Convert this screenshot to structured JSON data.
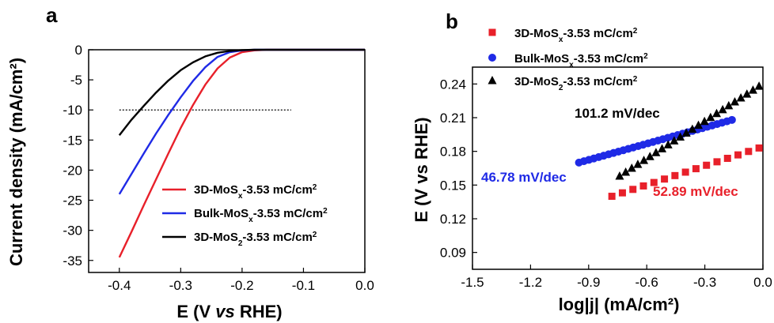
{
  "chart_data": [
    {
      "type": "line",
      "panel_label": "a",
      "xlabel_parts": [
        "E (V ",
        "vs",
        " RHE)"
      ],
      "ylabel": "Current density (mA/cm²)",
      "xlim": [
        -0.45,
        0.0
      ],
      "ylim": [
        -37,
        0
      ],
      "xticks": [
        -0.4,
        -0.3,
        -0.2,
        -0.1,
        0.0
      ],
      "xtick_labels": [
        "-0.4",
        "-0.3",
        "-0.2",
        "-0.1",
        "0.0"
      ],
      "yticks": [
        0,
        -5,
        -10,
        -15,
        -20,
        -25,
        -30,
        -35
      ],
      "ytick_labels": [
        "0",
        "-5",
        "-10",
        "-15",
        "-20",
        "-25",
        "-30",
        "-35"
      ],
      "reference_line": {
        "y": -10,
        "x": [
          -0.4,
          -0.12
        ],
        "style": "dotted"
      },
      "legend": {
        "position": "bottom-right"
      },
      "series": [
        {
          "name": "3D-MoSx-3.53 mC/cm2",
          "display": [
            "3D-MoS",
            "x",
            "-3.53 mC/cm",
            "2"
          ],
          "color": "#e8202a",
          "x": [
            -0.4,
            -0.38,
            -0.36,
            -0.34,
            -0.32,
            -0.3,
            -0.28,
            -0.26,
            -0.24,
            -0.22,
            -0.2,
            -0.18,
            -0.16,
            -0.14,
            -0.12,
            0.0
          ],
          "y": [
            -34.5,
            -30.2,
            -25.8,
            -21.5,
            -17.2,
            -13.0,
            -9.2,
            -5.8,
            -3.1,
            -1.3,
            -0.4,
            -0.1,
            0,
            0,
            0,
            0
          ]
        },
        {
          "name": "Bulk-MoSx-3.53 mC/cm2",
          "display": [
            "Bulk-MoS",
            "x",
            "-3.53 mC/cm",
            "2"
          ],
          "color": "#1f2ae6",
          "x": [
            -0.4,
            -0.38,
            -0.36,
            -0.34,
            -0.32,
            -0.3,
            -0.28,
            -0.26,
            -0.24,
            -0.22,
            -0.2,
            -0.18,
            -0.16,
            -0.14,
            -0.12,
            0.0
          ],
          "y": [
            -24.0,
            -20.6,
            -17.2,
            -13.9,
            -10.8,
            -7.9,
            -5.2,
            -2.9,
            -1.2,
            -0.4,
            -0.1,
            0,
            0,
            0,
            0,
            0
          ]
        },
        {
          "name": "3D-MoS2-3.53 mC/cm2",
          "display": [
            "3D-MoS",
            "2",
            "-3.53 mC/cm",
            "2"
          ],
          "color": "#000000",
          "x": [
            -0.4,
            -0.38,
            -0.36,
            -0.34,
            -0.32,
            -0.3,
            -0.28,
            -0.26,
            -0.24,
            -0.22,
            -0.2,
            -0.18,
            -0.16,
            -0.14,
            -0.12,
            0.0
          ],
          "y": [
            -14.2,
            -11.6,
            -9.3,
            -7.1,
            -5.1,
            -3.4,
            -2.1,
            -1.1,
            -0.5,
            -0.2,
            -0.05,
            0,
            0,
            0,
            0,
            0
          ]
        }
      ]
    },
    {
      "type": "scatter",
      "panel_label": "b",
      "xlabel": "log|j| (mA/cm²)",
      "ylabel": "E (V vs RHE)",
      "xlim": [
        -1.5,
        0.0
      ],
      "ylim": [
        0.075,
        0.255
      ],
      "xticks": [
        -1.5,
        -1.2,
        -0.9,
        -0.6,
        -0.3,
        0.0
      ],
      "xtick_labels": [
        "-1.5",
        "-1.2",
        "-0.9",
        "-0.6",
        "-0.3",
        "0.0"
      ],
      "yticks": [
        0.09,
        0.12,
        0.15,
        0.18,
        0.21,
        0.24
      ],
      "ytick_labels": [
        "0.09",
        "0.12",
        "0.15",
        "0.18",
        "0.21",
        "0.24"
      ],
      "legend": {
        "position": "top-left"
      },
      "series": [
        {
          "name": "3D-MoSx-3.53 mC/cm2",
          "display": [
            "3D-MoS",
            "x",
            "-3.53 mC/cm",
            "2"
          ],
          "color": "#e8202a",
          "marker": "square",
          "x_range": [
            -0.78,
            -0.02
          ],
          "y_range": [
            0.14,
            0.183
          ],
          "n": 15,
          "slope_label": "52.89 mV/dec"
        },
        {
          "name": "Bulk-MoSx-3.53 mC/cm2",
          "display": [
            "Bulk-MoS",
            "x",
            "-3.53 mC/cm",
            "2"
          ],
          "color": "#1f2ae6",
          "marker": "circle",
          "x_range": [
            -0.95,
            -0.16
          ],
          "y_range": [
            0.17,
            0.208
          ],
          "n": 32,
          "slope_label": "46.78 mV/dec"
        },
        {
          "name": "3D-MoS2-3.53 mC/cm2",
          "display": [
            "3D-MoS",
            "2",
            "-3.53 mC/cm",
            "2"
          ],
          "color": "#000000",
          "marker": "triangle",
          "x_range": [
            -0.74,
            -0.02
          ],
          "y_range": [
            0.158,
            0.238
          ],
          "n": 24,
          "slope_label": "101.2 mV/dec"
        }
      ]
    }
  ]
}
